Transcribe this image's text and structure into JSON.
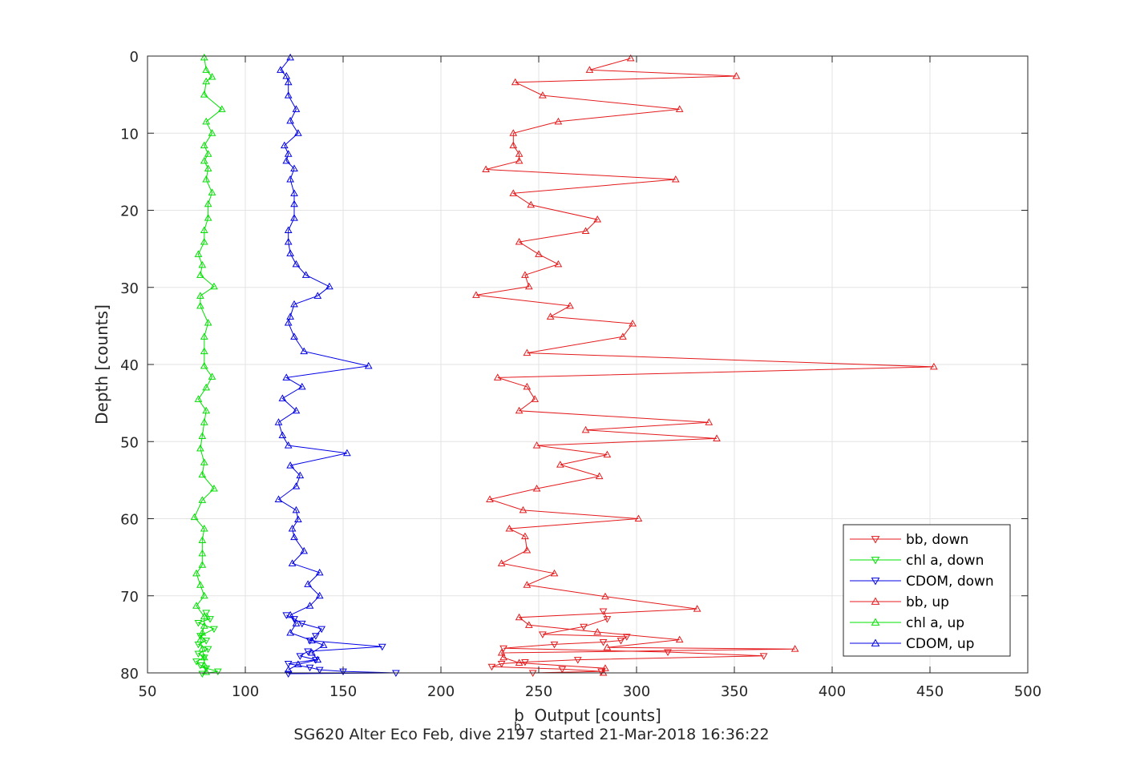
{
  "chart_data": {
    "type": "line",
    "xlabel": "b  Output [counts]",
    "xlabel_subscript": "b",
    "ylabel": "Depth [counts]",
    "caption": "SG620 Alter Eco Feb, dive 2197 started 21-Mar-2018 16:36:22",
    "xlim": [
      50,
      500
    ],
    "ylim": [
      0,
      80
    ],
    "y_reversed": true,
    "xticks": [
      50,
      100,
      150,
      200,
      250,
      300,
      350,
      400,
      450,
      500
    ],
    "yticks": [
      0,
      10,
      20,
      30,
      40,
      50,
      60,
      70,
      80
    ],
    "grid": true,
    "legend_position": "bottom-right",
    "series": [
      {
        "name": "bb, down",
        "color": "#e41a1c",
        "marker": "triangle-down",
        "points": [
          [
            283,
            72
          ],
          [
            285,
            73
          ],
          [
            273,
            74
          ],
          [
            252,
            75
          ],
          [
            295,
            75.3
          ],
          [
            292,
            75.8
          ],
          [
            283,
            76
          ],
          [
            258,
            76.3
          ],
          [
            232,
            76.8
          ],
          [
            316,
            77.3
          ],
          [
            365,
            77.8
          ],
          [
            270,
            78.3
          ],
          [
            243,
            78.6
          ],
          [
            231,
            78.8
          ],
          [
            226,
            79.2
          ],
          [
            262,
            79.5
          ],
          [
            282,
            79.8
          ],
          [
            247,
            80
          ]
        ]
      },
      {
        "name": "chl a, down",
        "color": "#00e000",
        "marker": "triangle-down",
        "points": [
          [
            80,
            72.2
          ],
          [
            82,
            73
          ],
          [
            76,
            73.5
          ],
          [
            84,
            74.3
          ],
          [
            77,
            75.2
          ],
          [
            80,
            75.8
          ],
          [
            76,
            76.3
          ],
          [
            81,
            76.9
          ],
          [
            76,
            77.5
          ],
          [
            79,
            78
          ],
          [
            75,
            78.5
          ],
          [
            77,
            79
          ],
          [
            80,
            79.4
          ],
          [
            86,
            79.8
          ],
          [
            78,
            80.1
          ]
        ]
      },
      {
        "name": "CDOM, down",
        "color": "#0000e6",
        "marker": "triangle-down",
        "points": [
          [
            121,
            72.5
          ],
          [
            125,
            73
          ],
          [
            129,
            73.6
          ],
          [
            139,
            74.3
          ],
          [
            136,
            75.2
          ],
          [
            133,
            75.8
          ],
          [
            170,
            76.6
          ],
          [
            132,
            77.2
          ],
          [
            128,
            77.8
          ],
          [
            136,
            78.3
          ],
          [
            122,
            78.8
          ],
          [
            133,
            79.3
          ],
          [
            138,
            79.6
          ],
          [
            150,
            79.8
          ],
          [
            177,
            80
          ],
          [
            122,
            80.1
          ]
        ]
      },
      {
        "name": "bb, up",
        "color": "#e41a1c",
        "marker": "triangle-up",
        "points": [
          [
            297,
            0.3
          ],
          [
            276,
            1.8
          ],
          [
            351,
            2.6
          ],
          [
            238,
            3.4
          ],
          [
            252,
            5.1
          ],
          [
            322,
            6.9
          ],
          [
            260,
            8.5
          ],
          [
            237,
            10
          ],
          [
            237,
            11.6
          ],
          [
            240,
            12.7
          ],
          [
            240,
            13.6
          ],
          [
            223,
            14.7
          ],
          [
            320,
            16
          ],
          [
            237,
            17.8
          ],
          [
            246,
            19.3
          ],
          [
            280,
            21.2
          ],
          [
            274,
            22.7
          ],
          [
            240,
            24.1
          ],
          [
            250,
            25.7
          ],
          [
            260,
            27
          ],
          [
            243,
            28.4
          ],
          [
            245,
            29.9
          ],
          [
            218,
            31
          ],
          [
            266,
            32.4
          ],
          [
            256,
            33.8
          ],
          [
            298,
            34.7
          ],
          [
            293,
            36.4
          ],
          [
            244,
            38.5
          ],
          [
            452,
            40.3
          ],
          [
            229,
            41.7
          ],
          [
            244,
            42.9
          ],
          [
            248,
            44.5
          ],
          [
            240,
            46
          ],
          [
            337,
            47.5
          ],
          [
            274,
            48.5
          ],
          [
            341,
            49.6
          ],
          [
            249,
            50.5
          ],
          [
            285,
            51.7
          ],
          [
            261,
            53
          ],
          [
            281,
            54.5
          ],
          [
            249,
            56.1
          ],
          [
            225,
            57.5
          ],
          [
            242,
            58.9
          ],
          [
            301,
            60
          ],
          [
            235,
            61.3
          ],
          [
            243,
            62.3
          ],
          [
            244,
            64.1
          ],
          [
            231,
            65.8
          ],
          [
            258,
            67.1
          ],
          [
            244,
            68.6
          ],
          [
            284,
            70.1
          ],
          [
            331,
            71.7
          ],
          [
            240,
            72.8
          ],
          [
            245,
            73.8
          ],
          [
            280,
            74.7
          ],
          [
            322,
            75.7
          ],
          [
            285,
            76.7
          ],
          [
            381,
            76.9
          ],
          [
            231,
            77.4
          ],
          [
            232,
            78
          ],
          [
            240,
            78.7
          ],
          [
            284,
            79.4
          ],
          [
            283,
            80
          ]
        ]
      },
      {
        "name": "chl a, up",
        "color": "#00e000",
        "marker": "triangle-up",
        "points": [
          [
            79,
            0.2
          ],
          [
            80,
            1.8
          ],
          [
            83,
            2.7
          ],
          [
            80,
            3.3
          ],
          [
            79,
            5
          ],
          [
            88,
            6.9
          ],
          [
            80,
            8.5
          ],
          [
            83,
            10
          ],
          [
            79,
            11.6
          ],
          [
            81,
            12.7
          ],
          [
            79,
            13.6
          ],
          [
            81,
            14.6
          ],
          [
            80,
            16
          ],
          [
            83,
            17.7
          ],
          [
            81,
            19.2
          ],
          [
            81,
            21
          ],
          [
            79,
            22.6
          ],
          [
            79,
            24.1
          ],
          [
            76,
            25.7
          ],
          [
            78,
            27.1
          ],
          [
            77,
            28.4
          ],
          [
            84,
            29.9
          ],
          [
            77,
            31.1
          ],
          [
            77,
            32.4
          ],
          [
            81,
            34.6
          ],
          [
            79,
            36.4
          ],
          [
            79,
            38.3
          ],
          [
            79,
            40.2
          ],
          [
            83,
            41.6
          ],
          [
            80,
            43
          ],
          [
            76,
            44.5
          ],
          [
            80,
            46
          ],
          [
            79,
            47.5
          ],
          [
            78,
            49.3
          ],
          [
            77,
            50.9
          ],
          [
            79,
            52.7
          ],
          [
            78,
            54.3
          ],
          [
            84,
            56.1
          ],
          [
            78,
            57.6
          ],
          [
            74,
            59.8
          ],
          [
            79,
            61.3
          ],
          [
            78,
            62.8
          ],
          [
            78,
            64.5
          ],
          [
            78,
            66
          ],
          [
            75,
            67.1
          ],
          [
            77,
            68.6
          ],
          [
            79,
            70
          ],
          [
            75,
            71.3
          ],
          [
            79,
            72.7
          ],
          [
            79,
            73.9
          ],
          [
            78,
            74.8
          ],
          [
            77,
            75.7
          ],
          [
            78,
            76.9
          ],
          [
            79,
            78
          ],
          [
            79,
            79
          ],
          [
            80,
            79.9
          ]
        ]
      },
      {
        "name": "CDOM, up",
        "color": "#0000e6",
        "marker": "triangle-up",
        "points": [
          [
            123,
            0.2
          ],
          [
            118,
            1.8
          ],
          [
            121,
            2.6
          ],
          [
            122,
            3.4
          ],
          [
            122,
            5.1
          ],
          [
            126,
            6.9
          ],
          [
            123,
            8.4
          ],
          [
            127,
            10
          ],
          [
            120,
            11.6
          ],
          [
            122,
            12.7
          ],
          [
            121,
            13.6
          ],
          [
            125,
            14.6
          ],
          [
            123,
            16
          ],
          [
            125,
            17.8
          ],
          [
            125,
            19.2
          ],
          [
            125,
            21
          ],
          [
            122,
            22.6
          ],
          [
            122,
            24.1
          ],
          [
            123,
            25.6
          ],
          [
            126,
            27
          ],
          [
            131,
            28.4
          ],
          [
            143,
            29.9
          ],
          [
            137,
            31.1
          ],
          [
            125,
            32.2
          ],
          [
            123,
            33.8
          ],
          [
            122,
            34.6
          ],
          [
            125,
            36.4
          ],
          [
            130,
            38.3
          ],
          [
            163,
            40.2
          ],
          [
            121,
            41.7
          ],
          [
            129,
            42.9
          ],
          [
            119,
            44.4
          ],
          [
            126,
            46
          ],
          [
            117,
            47.5
          ],
          [
            119,
            49.2
          ],
          [
            122,
            50.5
          ],
          [
            152,
            51.5
          ],
          [
            123,
            53.1
          ],
          [
            128,
            54.4
          ],
          [
            126,
            55.8
          ],
          [
            117,
            57.5
          ],
          [
            126,
            58.9
          ],
          [
            127,
            60.1
          ],
          [
            124,
            61.3
          ],
          [
            125,
            62.4
          ],
          [
            130,
            64.2
          ],
          [
            124,
            65.8
          ],
          [
            138,
            67
          ],
          [
            132,
            68.5
          ],
          [
            138,
            70
          ],
          [
            133,
            71.3
          ],
          [
            123,
            72.5
          ],
          [
            126,
            73.6
          ],
          [
            123,
            74.8
          ],
          [
            134,
            75.8
          ],
          [
            140,
            76.4
          ],
          [
            134,
            77.4
          ],
          [
            137,
            78.3
          ],
          [
            127,
            78.9
          ],
          [
            122,
            79.6
          ]
        ]
      }
    ]
  }
}
